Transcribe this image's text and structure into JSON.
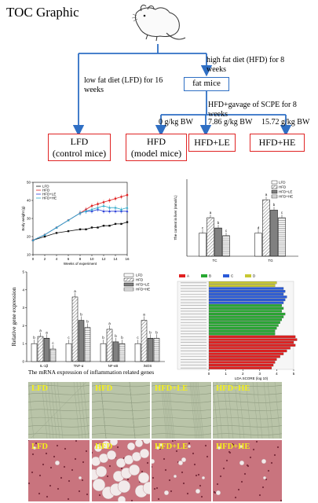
{
  "title": "TOC Graphic",
  "flow": {
    "hfd_text": "high fat diet (HFD) for 8 weeks",
    "lfd_text": "low fat diet (LFD) for 16 weeks",
    "fat_mice": "fat mice",
    "gavage": "HFD+gavage of SCPE for 8 weeks",
    "doses": [
      "0 g/kg BW",
      "7.86 g/kg BW",
      "15.72 g/kg BW"
    ],
    "groups": [
      {
        "line1": "LFD",
        "line2": "(control mice)"
      },
      {
        "line1": "HFD",
        "line2": "(model mice)"
      },
      {
        "line1": "HFD+LE",
        "line2": ""
      },
      {
        "line1": "HFD+HE",
        "line2": ""
      }
    ]
  },
  "colors": {
    "red_box": "#e02424",
    "blue_arrow": "#2f6fc4",
    "lfd": "#111111",
    "hfd": "#e02020",
    "le": "#2a3ed8",
    "he": "#2aa8c8"
  },
  "chart_data": [
    {
      "type": "line",
      "ylabel": "Body weight (g)",
      "xlabel": "Weeks of experiment",
      "ylim": [
        10,
        50
      ],
      "yticks": [
        "10",
        "20",
        "30",
        "40",
        "50"
      ],
      "x": [
        0,
        2,
        4,
        6,
        8,
        9,
        10,
        11,
        12,
        13,
        14,
        15,
        16
      ],
      "xticks": [
        "0",
        "2",
        "4",
        "6",
        "8",
        "10",
        "12",
        "14",
        "16"
      ],
      "legend": [
        "LFD",
        "HFD",
        "HFD+LE",
        "HFD+HE"
      ],
      "series": [
        {
          "name": "LFD",
          "values": [
            18,
            20,
            22,
            23,
            24,
            24,
            25,
            25,
            26,
            26,
            27,
            27,
            28
          ]
        },
        {
          "name": "HFD",
          "values": [
            18,
            21,
            25,
            29,
            33,
            35,
            37,
            38,
            39,
            40,
            41,
            42,
            43
          ]
        },
        {
          "name": "HFD+LE",
          "values": [
            18,
            21,
            25,
            29,
            33,
            34,
            34,
            35,
            34,
            34,
            34,
            34,
            34
          ]
        },
        {
          "name": "HFD+HE",
          "values": [
            18,
            21,
            25,
            29,
            33,
            34,
            35,
            36,
            37,
            36,
            36,
            35,
            36
          ]
        }
      ]
    },
    {
      "type": "bar",
      "ylabel": "The content in liver (mmol/L)",
      "categories": [
        "TC",
        "TG"
      ],
      "legend": [
        "LFD",
        "HFD",
        "HFD+LE",
        "HFD+HE"
      ],
      "ylim": [
        0,
        3
      ],
      "series": [
        {
          "name": "LFD",
          "values": [
            0.9,
            0.9
          ]
        },
        {
          "name": "HFD",
          "values": [
            1.5,
            2.2
          ]
        },
        {
          "name": "HFD+LE",
          "values": [
            1.1,
            1.8
          ]
        },
        {
          "name": "HFD+HE",
          "values": [
            0.8,
            1.5
          ]
        }
      ],
      "letters": [
        [
          "c",
          "a",
          "b",
          "c"
        ],
        [
          "d",
          "a",
          "b",
          "c"
        ]
      ]
    },
    {
      "type": "bar",
      "ylabel": "Relative gene expression",
      "title": "The mRNA expression of inflammation related genes",
      "categories": [
        "IL-1β",
        "TNF-α",
        "NF-κB",
        "iNOS"
      ],
      "legend": [
        "LFD",
        "HFD",
        "HFD+LE",
        "HFD+HE"
      ],
      "ylim": [
        0,
        5
      ],
      "yticks": [
        "0",
        "1",
        "2",
        "3",
        "4",
        "5"
      ],
      "series": [
        {
          "name": "LFD",
          "values": [
            1.0,
            1.0,
            1.0,
            1.0
          ]
        },
        {
          "name": "HFD",
          "values": [
            1.4,
            3.6,
            1.8,
            2.3
          ]
        },
        {
          "name": "HFD+LE",
          "values": [
            1.3,
            2.3,
            1.1,
            1.3
          ]
        },
        {
          "name": "HFD+HE",
          "values": [
            0.7,
            1.9,
            1.0,
            1.3
          ]
        }
      ],
      "letters": [
        [
          "b",
          "a",
          "a",
          "c"
        ],
        [
          "c",
          "a",
          "b",
          "b"
        ],
        [
          "b",
          "a",
          "b",
          "b"
        ],
        [
          "c",
          "a",
          "b",
          "b"
        ]
      ]
    },
    {
      "type": "bar",
      "orientation": "horizontal",
      "xlabel": "LDA SCORE (log 10)",
      "xlim": [
        0,
        5
      ],
      "xticks": [
        "0",
        "1",
        "2",
        "3",
        "4",
        "5"
      ],
      "legend": [
        "A",
        "B",
        "C",
        "D"
      ],
      "groups": [
        {
          "name": "D",
          "color": "#c8c832",
          "values": [
            4.0,
            3.9
          ]
        },
        {
          "name": "C",
          "color": "#2a5ad8",
          "values": [
            4.4,
            4.5,
            4.4,
            4.6,
            4.5,
            4.4
          ]
        },
        {
          "name": "B",
          "color": "#28a832",
          "values": [
            4.3,
            4.4,
            4.3,
            4.5,
            4.4,
            4.3,
            4.2,
            4.1,
            4.0,
            3.9,
            3.9
          ]
        },
        {
          "name": "A",
          "color": "#e02020",
          "values": [
            5.1,
            5.2,
            5.0,
            5.1,
            4.8,
            4.6,
            4.4,
            4.2,
            4.0,
            3.9,
            3.8,
            3.7
          ]
        }
      ]
    }
  ],
  "histology": {
    "top": [
      "LFD",
      "HFD",
      "HFD+LE",
      "HFD+HE"
    ],
    "bottom": [
      "LFD",
      "HFD",
      "HFD+LE",
      "HFD+HE"
    ]
  }
}
